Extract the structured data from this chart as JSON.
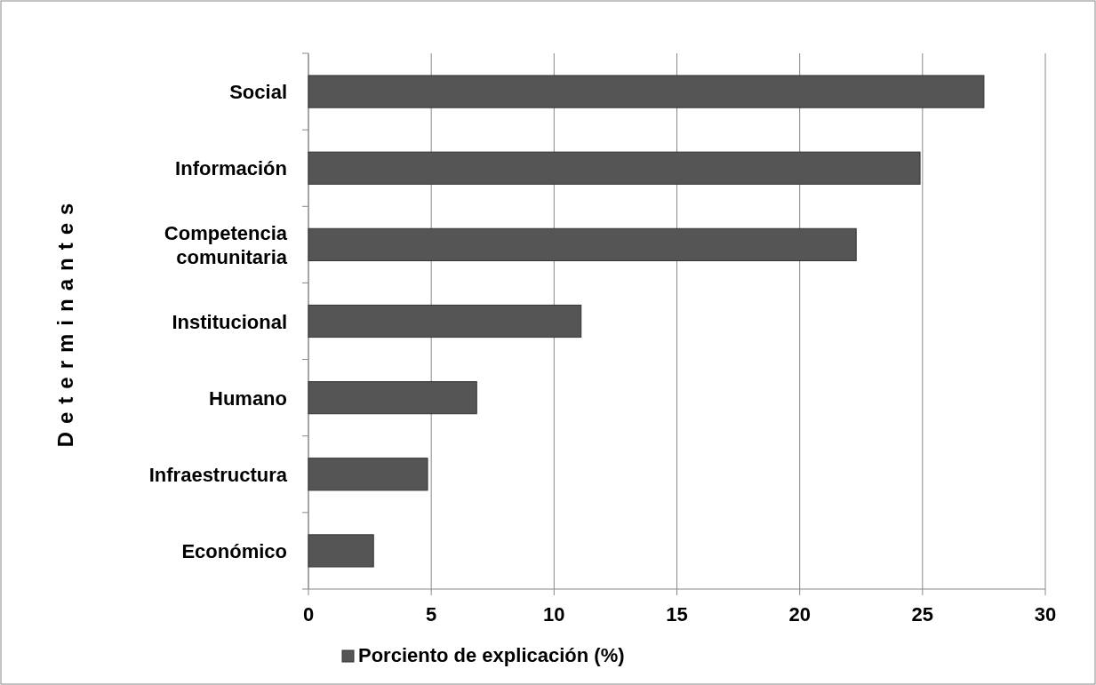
{
  "chart_data": {
    "type": "bar",
    "orientation": "horizontal",
    "ylabel": "Determinantes",
    "categories": [
      "Social",
      "Información",
      "Competencia comunitaria",
      "Institucional",
      "Humano",
      "Infraestructura",
      "Económico"
    ],
    "series": [
      {
        "name": "Porciento de explicación (%)",
        "color": "#555555",
        "values": [
          27.5,
          24.9,
          22.3,
          11.1,
          6.85,
          4.85,
          2.65
        ]
      }
    ],
    "xlim": [
      0,
      30
    ],
    "xticks": [
      0,
      5,
      10,
      15,
      20,
      25,
      30
    ],
    "grid": "x",
    "legend": "bottom"
  }
}
